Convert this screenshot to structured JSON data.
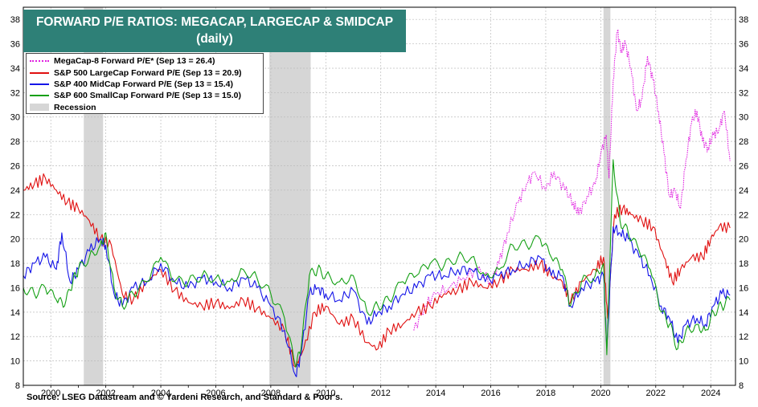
{
  "chart_data": {
    "type": "line",
    "title": "FORWARD P/E RATIOS: MEGACAP, LARGECAP & SMIDCAP",
    "subtitle": "(daily)",
    "xlim": [
      1999.0,
      2024.9
    ],
    "ylim": [
      8,
      39
    ],
    "x_ticks": [
      "2000",
      "2002",
      "2004",
      "2006",
      "2008",
      "2010",
      "2012",
      "2014",
      "2016",
      "2018",
      "2020",
      "2022",
      "2024"
    ],
    "y_ticks": [
      "8",
      "10",
      "12",
      "14",
      "16",
      "18",
      "20",
      "22",
      "24",
      "26",
      "28",
      "30",
      "32",
      "34",
      "36",
      "38"
    ],
    "recessions": [
      [
        2001.2,
        2001.9
      ],
      [
        2007.95,
        2009.45
      ],
      [
        2020.1,
        2020.35
      ]
    ],
    "series": [
      {
        "name": "MegaCap-8 Forward P/E* (Sep 13 = 26.4)",
        "color": "#e020e0",
        "dashed": true,
        "x": [
          2013.2,
          2013.6,
          2014.0,
          2014.5,
          2015.0,
          2015.5,
          2016.0,
          2016.3,
          2016.6,
          2017.0,
          2017.3,
          2017.6,
          2018.0,
          2018.3,
          2018.7,
          2019.0,
          2019.2,
          2019.5,
          2019.8,
          2020.0,
          2020.2,
          2020.3,
          2020.45,
          2020.6,
          2020.75,
          2020.9,
          2021.1,
          2021.3,
          2021.5,
          2021.7,
          2021.9,
          2022.1,
          2022.3,
          2022.5,
          2022.7,
          2022.9,
          2023.1,
          2023.3,
          2023.5,
          2023.7,
          2023.9,
          2024.1,
          2024.3,
          2024.5,
          2024.7
        ],
        "values": [
          12.5,
          14.5,
          15.5,
          16.0,
          16.8,
          17.5,
          16.5,
          18.0,
          20.5,
          23.0,
          24.5,
          25.5,
          24.0,
          25.5,
          24.0,
          23.0,
          22.0,
          23.5,
          24.5,
          27.0,
          28.5,
          25.0,
          33.0,
          37.0,
          35.5,
          36.0,
          34.0,
          30.5,
          31.5,
          35.0,
          33.0,
          30.5,
          27.0,
          23.5,
          24.0,
          22.5,
          26.5,
          29.5,
          30.5,
          28.0,
          27.5,
          28.5,
          29.0,
          30.5,
          26.4
        ]
      },
      {
        "name": "S&P 500 LargeCap Forward P/E (Sep 13 = 20.9)",
        "color": "#e01010",
        "dashed": false,
        "x": [
          1999.0,
          1999.4,
          1999.8,
          2000.2,
          2000.6,
          2001.0,
          2001.4,
          2001.8,
          2002.2,
          2002.6,
          2003.0,
          2003.5,
          2004.0,
          2004.5,
          2005.0,
          2005.5,
          2006.0,
          2006.5,
          2007.0,
          2007.5,
          2008.0,
          2008.5,
          2008.9,
          2009.2,
          2009.6,
          2010.0,
          2010.5,
          2011.0,
          2011.5,
          2011.9,
          2012.3,
          2012.8,
          2013.3,
          2013.8,
          2014.3,
          2014.8,
          2015.3,
          2015.8,
          2016.3,
          2016.8,
          2017.3,
          2017.8,
          2018.2,
          2018.6,
          2018.9,
          2019.3,
          2019.8,
          2020.1,
          2020.25,
          2020.5,
          2020.8,
          2021.1,
          2021.5,
          2021.9,
          2022.3,
          2022.6,
          2022.9,
          2023.3,
          2023.7,
          2024.0,
          2024.3,
          2024.7
        ],
        "values": [
          24.0,
          24.5,
          25.0,
          24.0,
          23.0,
          22.5,
          21.5,
          20.0,
          19.5,
          15.5,
          15.0,
          16.5,
          17.5,
          15.8,
          14.8,
          14.5,
          14.8,
          14.3,
          15.0,
          14.3,
          13.5,
          12.5,
          9.5,
          11.0,
          14.0,
          14.5,
          13.0,
          13.5,
          11.5,
          11.0,
          12.5,
          13.0,
          14.0,
          14.5,
          15.5,
          15.8,
          16.5,
          16.0,
          16.5,
          17.5,
          17.5,
          18.0,
          17.0,
          16.5,
          14.8,
          16.5,
          17.5,
          18.5,
          13.5,
          22.0,
          22.5,
          22.0,
          21.5,
          21.0,
          18.5,
          16.5,
          17.5,
          18.5,
          18.5,
          20.0,
          21.0,
          20.9
        ]
      },
      {
        "name": "S&P 400 MidCap Forward P/E (Sep 13 = 15.4)",
        "color": "#1515e8",
        "dashed": false,
        "x": [
          1999.0,
          1999.4,
          1999.8,
          2000.2,
          2000.4,
          2000.7,
          2001.0,
          2001.4,
          2001.8,
          2002.0,
          2002.3,
          2002.6,
          2003.0,
          2003.5,
          2004.0,
          2004.5,
          2005.0,
          2005.5,
          2006.0,
          2006.5,
          2007.0,
          2007.5,
          2008.0,
          2008.5,
          2008.9,
          2009.1,
          2009.4,
          2009.7,
          2010.0,
          2010.5,
          2011.0,
          2011.5,
          2011.9,
          2012.3,
          2012.8,
          2013.3,
          2013.8,
          2014.3,
          2014.8,
          2015.3,
          2015.8,
          2016.3,
          2016.8,
          2017.3,
          2017.8,
          2018.2,
          2018.6,
          2018.9,
          2019.3,
          2019.8,
          2020.1,
          2020.22,
          2020.45,
          2020.7,
          2021.0,
          2021.4,
          2021.8,
          2022.2,
          2022.5,
          2022.8,
          2023.1,
          2023.5,
          2023.8,
          2024.1,
          2024.4,
          2024.7
        ],
        "values": [
          17.0,
          18.0,
          18.5,
          17.5,
          20.5,
          16.5,
          17.5,
          19.0,
          20.0,
          19.5,
          15.5,
          14.5,
          16.0,
          16.5,
          18.0,
          16.5,
          16.0,
          16.8,
          16.5,
          16.0,
          16.8,
          16.0,
          14.5,
          12.5,
          8.8,
          10.5,
          15.5,
          16.0,
          15.5,
          15.0,
          15.8,
          13.0,
          14.0,
          14.5,
          15.5,
          16.0,
          17.0,
          17.0,
          17.5,
          17.5,
          16.5,
          17.0,
          17.5,
          18.0,
          18.5,
          17.0,
          17.0,
          14.5,
          16.0,
          16.5,
          17.0,
          11.0,
          21.0,
          20.5,
          20.0,
          18.5,
          17.0,
          14.5,
          13.5,
          11.5,
          13.0,
          13.5,
          13.0,
          14.5,
          15.5,
          15.4
        ]
      },
      {
        "name": "S&P 600 SmallCap Forward P/E (Sep 13 = 15.0)",
        "color": "#14a014",
        "dashed": false,
        "x": [
          1999.0,
          1999.4,
          1999.8,
          2000.2,
          2000.5,
          2000.8,
          2001.0,
          2001.4,
          2001.8,
          2002.0,
          2002.3,
          2002.6,
          2003.0,
          2003.5,
          2004.0,
          2004.5,
          2005.0,
          2005.5,
          2006.0,
          2006.5,
          2007.0,
          2007.5,
          2008.0,
          2008.5,
          2008.9,
          2009.1,
          2009.4,
          2009.7,
          2010.0,
          2010.5,
          2011.0,
          2011.5,
          2011.9,
          2012.3,
          2012.8,
          2013.3,
          2013.8,
          2014.3,
          2014.8,
          2015.3,
          2015.8,
          2016.3,
          2016.8,
          2017.3,
          2017.8,
          2018.2,
          2018.6,
          2018.9,
          2019.3,
          2019.8,
          2020.1,
          2020.22,
          2020.45,
          2020.7,
          2021.0,
          2021.4,
          2021.8,
          2022.2,
          2022.5,
          2022.8,
          2023.1,
          2023.5,
          2023.8,
          2024.1,
          2024.4,
          2024.7
        ],
        "values": [
          16.0,
          15.5,
          16.0,
          15.0,
          14.5,
          16.5,
          17.5,
          18.5,
          19.5,
          20.5,
          16.0,
          14.5,
          15.5,
          16.5,
          18.5,
          16.5,
          16.5,
          17.0,
          16.8,
          16.5,
          17.5,
          16.8,
          15.5,
          13.5,
          9.5,
          11.0,
          17.0,
          17.5,
          17.0,
          16.5,
          17.0,
          14.0,
          14.5,
          15.0,
          16.5,
          17.0,
          18.0,
          17.8,
          18.5,
          18.5,
          17.0,
          17.5,
          19.5,
          19.5,
          20.0,
          18.5,
          17.5,
          14.5,
          16.5,
          17.0,
          18.0,
          10.5,
          26.5,
          21.5,
          20.5,
          19.0,
          17.5,
          14.0,
          13.0,
          11.0,
          12.5,
          13.0,
          12.5,
          14.0,
          14.5,
          15.0
        ]
      }
    ],
    "legend": {
      "placement": "top-left",
      "recession_label": "Recession",
      "recession_color": "#d6d6d6"
    },
    "source": "Source: LSEG Datastream and © Yardeni Research, and Standard & Poor's."
  }
}
